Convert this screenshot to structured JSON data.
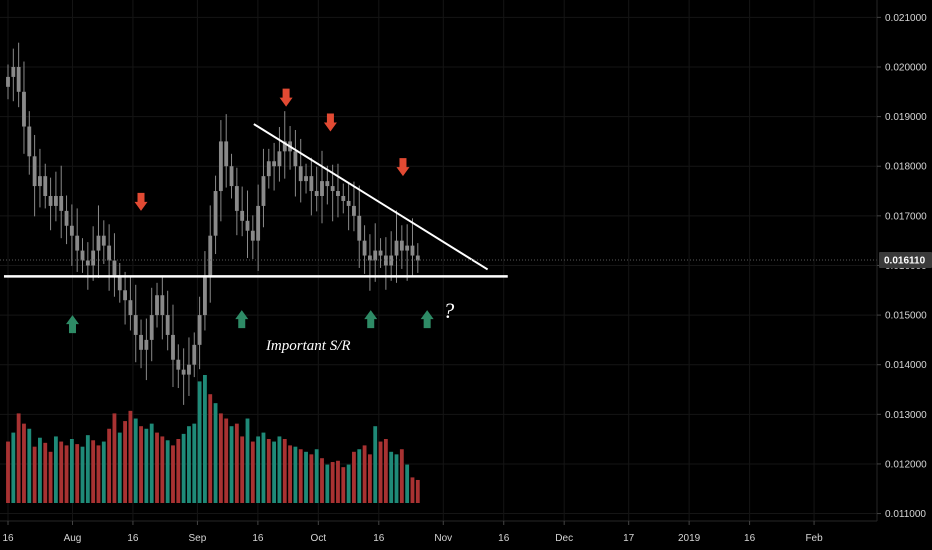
{
  "chart_data": {
    "type": "candlestick",
    "background": "#000000",
    "colors": {
      "candle": "#8a8a8a",
      "volume_up": "#1f8a78",
      "volume_down": "#a83232",
      "grid": "#151515",
      "axis_text": "#d6d6d6",
      "annotation_line": "#ffffff",
      "arrow_up": "#2e8b66",
      "arrow_down": "#e24a33",
      "current_price_tag": "#3a3a3a"
    },
    "y_axis": {
      "range": [
        0.01085,
        0.02135
      ],
      "ticks": [
        "0.021000",
        "0.020000",
        "0.019000",
        "0.018000",
        "0.017000",
        "0.016000",
        "0.015000",
        "0.014000",
        "0.013000",
        "0.012000",
        "0.011000"
      ],
      "tick_values": [
        0.021,
        0.02,
        0.019,
        0.018,
        0.017,
        0.016,
        0.015,
        0.014,
        0.013,
        0.012,
        0.011
      ]
    },
    "x_axis": {
      "start_date": "2018-07-16",
      "range_days": 217.6,
      "ticks": [
        {
          "label": "16",
          "day": 0
        },
        {
          "label": "Aug",
          "day": 16
        },
        {
          "label": "16",
          "day": 31
        },
        {
          "label": "Sep",
          "day": 47
        },
        {
          "label": "16",
          "day": 62
        },
        {
          "label": "Oct",
          "day": 77
        },
        {
          "label": "16",
          "day": 92
        },
        {
          "label": "Nov",
          "day": 108
        },
        {
          "label": "16",
          "day": 123
        },
        {
          "label": "Dec",
          "day": 138
        },
        {
          "label": "17",
          "day": 154
        },
        {
          "label": "2019",
          "day": 169
        },
        {
          "label": "16",
          "day": 184
        },
        {
          "label": "Feb",
          "day": 200
        }
      ]
    },
    "current_price": {
      "value": 0.01611,
      "label": "0.016110"
    },
    "candles_close": [
      0.0198,
      0.02,
      0.0195,
      0.0188,
      0.0182,
      0.0176,
      0.0178,
      0.0174,
      0.0172,
      0.0174,
      0.0171,
      0.0168,
      0.0166,
      0.0163,
      0.0161,
      0.016,
      0.0163,
      0.0166,
      0.0164,
      0.0161,
      0.0158,
      0.0155,
      0.0153,
      0.015,
      0.0146,
      0.0143,
      0.0145,
      0.015,
      0.0154,
      0.015,
      0.0146,
      0.0141,
      0.0139,
      0.0138,
      0.014,
      0.0144,
      0.015,
      0.0158,
      0.0166,
      0.0175,
      0.0185,
      0.018,
      0.0176,
      0.0171,
      0.0169,
      0.0167,
      0.0165,
      0.0172,
      0.0178,
      0.0181,
      0.018,
      0.0183,
      0.0185,
      0.0183,
      0.018,
      0.0177,
      0.0178,
      0.0175,
      0.0174,
      0.0177,
      0.0176,
      0.0175,
      0.0174,
      0.0173,
      0.0172,
      0.017,
      0.0165,
      0.0162,
      0.0161,
      0.0163,
      0.0162,
      0.016,
      0.0162,
      0.0165,
      0.0163,
      0.0164,
      0.0162,
      0.0161
    ],
    "volumes": [
      0.48,
      0.55,
      0.7,
      0.62,
      0.58,
      0.44,
      0.51,
      0.47,
      0.4,
      0.52,
      0.48,
      0.45,
      0.5,
      0.46,
      0.44,
      0.53,
      0.49,
      0.45,
      0.48,
      0.58,
      0.7,
      0.55,
      0.64,
      0.72,
      0.66,
      0.6,
      0.58,
      0.62,
      0.55,
      0.52,
      0.49,
      0.45,
      0.5,
      0.54,
      0.6,
      0.62,
      0.95,
      1.0,
      0.85,
      0.78,
      0.7,
      0.66,
      0.6,
      0.62,
      0.52,
      0.66,
      0.48,
      0.52,
      0.55,
      0.5,
      0.48,
      0.52,
      0.5,
      0.45,
      0.44,
      0.42,
      0.4,
      0.38,
      0.42,
      0.35,
      0.3,
      0.32,
      0.33,
      0.28,
      0.3,
      0.4,
      0.42,
      0.45,
      0.38,
      0.6,
      0.48,
      0.5,
      0.4,
      0.38,
      0.42,
      0.3,
      0.2,
      0.18
    ],
    "volume_colors": [
      "down",
      "up",
      "down",
      "down",
      "up",
      "down",
      "up",
      "down",
      "down",
      "up",
      "down",
      "down",
      "up",
      "down",
      "up",
      "up",
      "down",
      "down",
      "up",
      "down",
      "down",
      "up",
      "down",
      "down",
      "up",
      "down",
      "up",
      "up",
      "down",
      "down",
      "up",
      "down",
      "down",
      "up",
      "up",
      "up",
      "up",
      "up",
      "down",
      "up",
      "down",
      "down",
      "up",
      "down",
      "down",
      "up",
      "down",
      "up",
      "up",
      "down",
      "up",
      "up",
      "down",
      "down",
      "up",
      "down",
      "up",
      "down",
      "up",
      "down",
      "up",
      "down",
      "down",
      "down",
      "up",
      "down",
      "up",
      "down",
      "down",
      "up",
      "down",
      "down",
      "up",
      "up",
      "down",
      "up",
      "down",
      "down"
    ],
    "annotations": {
      "support_line": {
        "value": 0.01578,
        "day_from": -1,
        "day_to": 124
      },
      "trend_line": {
        "from": {
          "day": 61,
          "value": 0.01885
        },
        "to": {
          "day": 119,
          "value": 0.01592
        }
      },
      "down_arrows": [
        {
          "day": 33,
          "value": 0.0171
        },
        {
          "day": 69,
          "value": 0.0192
        },
        {
          "day": 80,
          "value": 0.0187
        },
        {
          "day": 98,
          "value": 0.0178
        }
      ],
      "up_arrows": [
        {
          "day": 16,
          "value": 0.015
        },
        {
          "day": 58,
          "value": 0.0151
        },
        {
          "day": 90,
          "value": 0.0151
        },
        {
          "day": 104,
          "value": 0.0151
        }
      ],
      "question_mark": {
        "text": "?",
        "day": 108,
        "value": 0.0151
      },
      "label": {
        "text": "Important S/R",
        "day": 64,
        "value": 0.0143
      }
    }
  }
}
